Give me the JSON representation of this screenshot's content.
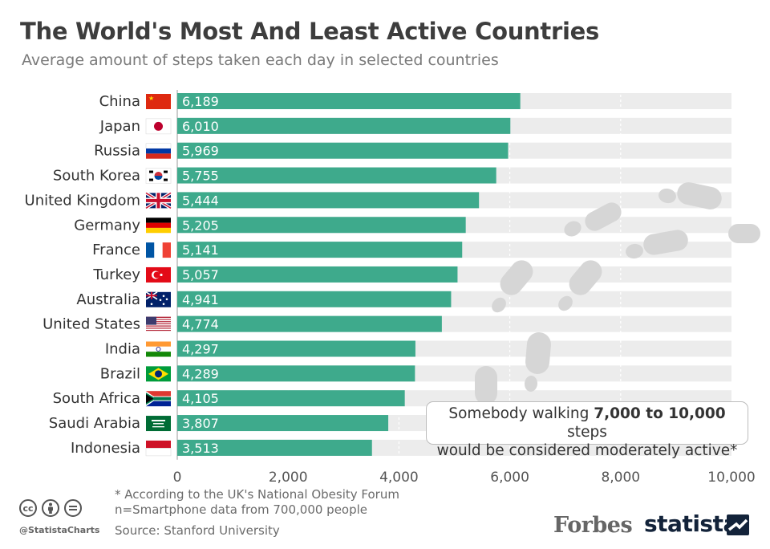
{
  "header": {
    "title": "The World's Most And Least Active Countries",
    "subtitle": "Average amount of steps taken each day in selected countries"
  },
  "chart_data": {
    "type": "bar",
    "orientation": "horizontal",
    "title": "The World's Most And Least Active Countries",
    "subtitle": "Average amount of steps taken each day in selected countries",
    "xlabel": "",
    "ylabel": "",
    "xlim": [
      0,
      10000
    ],
    "x_ticks": [
      "0",
      "2,000",
      "4,000",
      "6,000",
      "8,000",
      "10,000"
    ],
    "categories": [
      "China",
      "Japan",
      "Russia",
      "South Korea",
      "United Kingdom",
      "Germany",
      "France",
      "Turkey",
      "Australia",
      "United States",
      "India",
      "Brazil",
      "South Africa",
      "Saudi Arabia",
      "Indonesia"
    ],
    "values": [
      6189,
      6010,
      5969,
      5755,
      5444,
      5205,
      5141,
      5057,
      4941,
      4774,
      4297,
      4289,
      4105,
      3807,
      3513
    ],
    "value_labels": [
      "6,189",
      "6,010",
      "5,969",
      "5,755",
      "5,444",
      "5,205",
      "5,141",
      "5,057",
      "4,941",
      "4,774",
      "4,297",
      "4,289",
      "4,105",
      "3,807",
      "3,513"
    ],
    "flags": [
      "china-flag",
      "japan-flag",
      "russia-flag",
      "south-korea-flag",
      "uk-flag",
      "germany-flag",
      "france-flag",
      "turkey-flag",
      "australia-flag",
      "usa-flag",
      "india-flag",
      "brazil-flag",
      "south-africa-flag",
      "saudi-arabia-flag",
      "indonesia-flag"
    ],
    "colors": {
      "bar": "#3eaa8c",
      "track": "#ececec",
      "grid": "#ffffff"
    }
  },
  "note": {
    "line1_pre": "Somebody walking ",
    "line1_bold": "7,000 to 10,000",
    "line1_post": " steps",
    "line2": "would be considered moderately active*"
  },
  "footer": {
    "footnote": "* According to the UK's National Obesity Forum",
    "sample": "n=Smartphone data from 700,000 people",
    "source": "Source: Stanford University",
    "handle": "@StatistaCharts",
    "forbes": "Forbes",
    "statista": "statista",
    "license_icons": [
      "cc-icon",
      "attribution-icon",
      "no-derivatives-icon"
    ]
  }
}
